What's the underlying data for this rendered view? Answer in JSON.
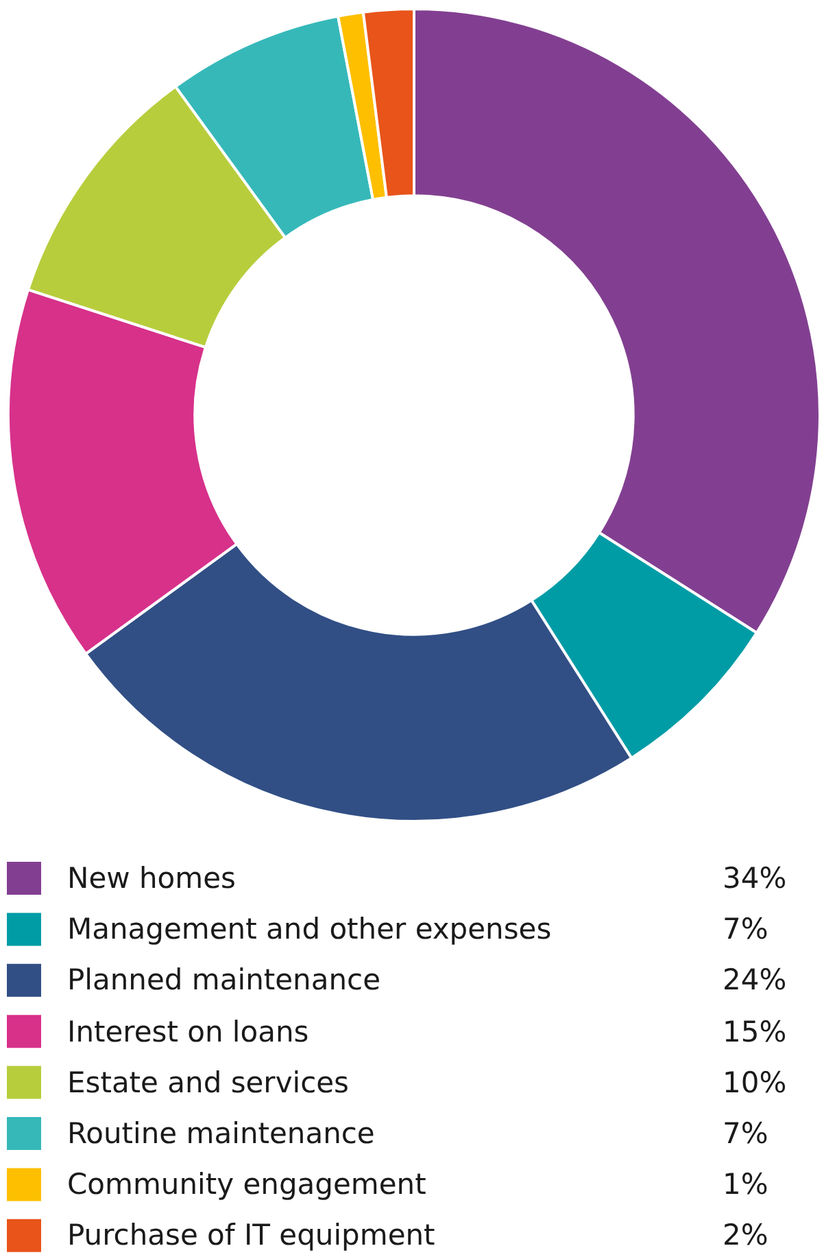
{
  "chart_data": {
    "type": "donut",
    "categories": [
      "New homes",
      "Management and other expenses",
      "Planned maintenance",
      "Interest on loans",
      "Estate and services",
      "Routine maintenance",
      "Community engagement",
      "Purchase of IT equipment"
    ],
    "values": [
      34,
      7,
      24,
      15,
      10,
      7,
      1,
      2
    ],
    "colors": [
      "#823f91",
      "#009ca6",
      "#314f85",
      "#d7318a",
      "#b8cd3c",
      "#36b8b9",
      "#fdbf00",
      "#e8541a"
    ],
    "value_labels": [
      "34%",
      "7%",
      "24%",
      "15%",
      "10%",
      "7%",
      "1%",
      "2%"
    ],
    "legend": "bottom"
  }
}
